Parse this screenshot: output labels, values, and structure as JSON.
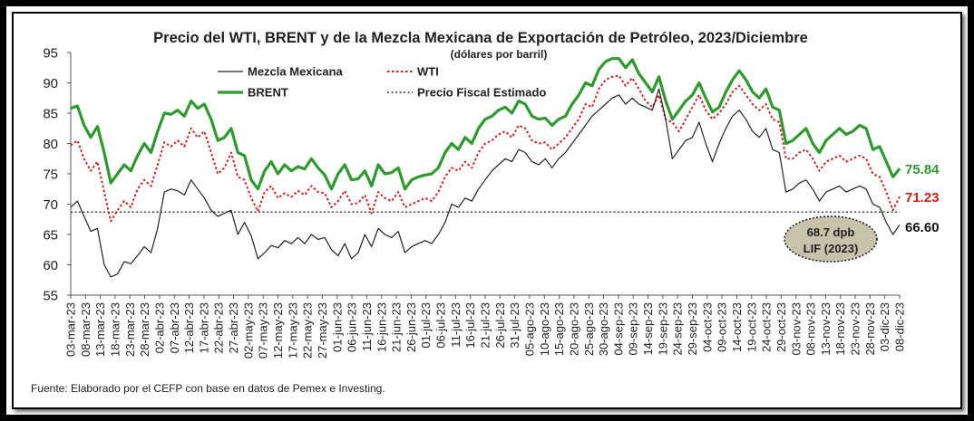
{
  "chart_data": {
    "type": "line",
    "title": "Precio del WTI, BRENT y de la Mezcla Mexicana de Exportación de Petróleo, 2023/Diciembre",
    "subtitle": "(dólares por barril)",
    "ylim": [
      55,
      95
    ],
    "yticks": [
      55,
      60,
      65,
      70,
      75,
      80,
      85,
      90,
      95
    ],
    "xtick_labels": [
      "03-mar-23",
      "08-mar-23",
      "13-mar-23",
      "18-mar-23",
      "23-mar-23",
      "28-mar-23",
      "02-abr-23",
      "07-abr-23",
      "12-abr-23",
      "17-abr-23",
      "22-abr-23",
      "27-abr-23",
      "02-may-23",
      "07-may-23",
      "12-may-23",
      "17-may-23",
      "22-may-23",
      "27-may-23",
      "01-jun-23",
      "06-jun-23",
      "11-jun-23",
      "16-jun-23",
      "21-jun-23",
      "26-jun-23",
      "01-jul-23",
      "06-jul-23",
      "11-jul-23",
      "16-jul-23",
      "21-jul-23",
      "26-jul-23",
      "31-jul-23",
      "05-ago-23",
      "10-ago-23",
      "15-ago-23",
      "20-ago-23",
      "25-ago-23",
      "30-ago-23",
      "04-sep-23",
      "09-sep-23",
      "14-sep-23",
      "19-sep-23",
      "24-sep-23",
      "29-sep-23",
      "04-oct-23",
      "09-oct-23",
      "14-oct-23",
      "19-oct-23",
      "24-oct-23",
      "29-oct-23",
      "03-nov-23",
      "08-nov-23",
      "13-nov-23",
      "18-nov-23",
      "23-nov-23",
      "28-nov-23",
      "03-dic-23",
      "08-dic-23"
    ],
    "legend": [
      "Mezcla Mexicana",
      "WTI",
      "BRENT",
      "Precio Fiscal Estimado"
    ],
    "series": [
      {
        "name": "BRENT",
        "color": "#2e9a2e",
        "end_label": "75.84",
        "values": [
          85.8,
          86.2,
          83,
          81,
          82.8,
          78.5,
          73.5,
          75,
          76.5,
          75.5,
          78,
          80,
          78.5,
          82,
          85,
          84.8,
          85.5,
          84.5,
          87,
          85.8,
          86.5,
          84,
          80.5,
          81,
          82.5,
          78.5,
          78,
          74,
          72.5,
          75.5,
          77,
          75,
          76.5,
          75.5,
          76.2,
          75.8,
          77.5,
          76,
          74.8,
          72.5,
          75,
          76.5,
          74,
          74.2,
          75.5,
          73,
          76.5,
          75,
          75.2,
          76,
          72.5,
          74,
          74.5,
          74.8,
          75,
          76,
          78.5,
          80,
          79,
          81,
          80,
          82.5,
          84,
          84.5,
          85.5,
          86,
          85,
          87,
          86.5,
          84.5,
          84,
          84.2,
          83,
          84,
          84.5,
          86.5,
          88,
          90,
          89.5,
          92.2,
          93.5,
          94,
          94,
          92.5,
          93.8,
          91.5,
          90,
          88.5,
          91,
          87,
          84,
          85.5,
          87,
          88,
          90,
          87.5,
          85.2,
          86,
          88.5,
          90.5,
          92,
          90.5,
          88.5,
          87.5,
          89,
          86,
          85.5,
          80,
          80.5,
          81.5,
          82.5,
          80,
          78.5,
          80.5,
          81.5,
          82.5,
          81.5,
          82,
          83,
          82.5,
          79,
          79.5,
          77,
          74.5,
          75.84
        ]
      },
      {
        "name": "WTI",
        "color": "#d62020",
        "end_label": "71.23",
        "values": [
          79.7,
          80.5,
          77.5,
          75.5,
          77,
          72,
          67.2,
          69,
          70.5,
          69.5,
          72.5,
          74,
          73,
          76.5,
          80.2,
          79.5,
          80.5,
          79.5,
          82.5,
          81,
          82,
          78.5,
          75,
          76,
          78.5,
          74.5,
          74,
          71,
          68.8,
          72,
          73,
          71,
          71.8,
          71.2,
          72.2,
          71.5,
          73,
          72,
          71.8,
          69.5,
          70.5,
          72.2,
          70,
          70.2,
          71.5,
          68.5,
          72,
          71,
          70.5,
          72,
          69.5,
          70,
          70.5,
          71,
          70.5,
          72,
          74.5,
          76,
          75.5,
          77,
          76,
          78.5,
          80,
          80.5,
          81.5,
          82,
          81,
          83,
          82.5,
          80.5,
          80,
          80.2,
          79,
          80,
          81,
          82.5,
          84,
          86.5,
          86,
          89,
          90.5,
          91,
          91.2,
          89.5,
          90.8,
          89,
          87,
          86,
          88,
          84,
          83.5,
          82,
          84,
          86,
          88,
          85.5,
          84,
          85,
          86.5,
          88.5,
          89.5,
          88,
          86.5,
          85.5,
          86.5,
          84,
          83.5,
          77.5,
          77.5,
          78.5,
          79,
          77.5,
          75.5,
          77,
          77.5,
          78,
          77,
          77.5,
          78,
          77.5,
          75,
          74.5,
          72,
          69,
          71.23
        ]
      },
      {
        "name": "Mezcla Mexicana",
        "color": "#222222",
        "end_label": "66.60",
        "values": [
          69.5,
          70.5,
          68,
          65.5,
          66,
          60,
          58,
          58.5,
          60.5,
          60.2,
          61.5,
          63,
          62,
          66,
          72,
          72.5,
          72.2,
          71.5,
          74,
          72.5,
          71,
          69,
          68,
          68.5,
          69,
          65,
          67,
          64.8,
          61,
          62,
          63.2,
          62.8,
          64,
          63.5,
          64.5,
          63.5,
          65,
          64.2,
          64.5,
          62.5,
          61.5,
          63.5,
          61,
          62,
          65,
          63,
          66,
          65,
          64.5,
          65.5,
          62,
          63,
          63.5,
          64,
          63.5,
          65,
          67,
          70,
          69.5,
          71,
          70.5,
          72.5,
          74,
          75.5,
          76.5,
          77.5,
          77,
          79,
          78.5,
          77,
          76.5,
          77.5,
          76,
          77.5,
          78.5,
          80,
          81.5,
          83,
          84.5,
          85.5,
          86.5,
          87.5,
          88,
          86.5,
          87.5,
          86.5,
          86,
          85.5,
          89,
          84,
          77.5,
          79,
          80.5,
          81,
          83.5,
          80,
          77,
          80,
          82.5,
          84.5,
          85.5,
          84,
          82,
          81,
          82.5,
          79,
          78.5,
          72,
          72.5,
          73.5,
          74,
          72.5,
          70.5,
          72,
          72.5,
          73,
          72,
          72.5,
          73,
          72.5,
          70,
          69.5,
          67,
          65,
          66.6
        ]
      }
    ],
    "reference_line": {
      "name": "Precio Fiscal Estimado",
      "value": 68.7,
      "label_line1": "68.7 dpb",
      "label_line2": "LIF (2023)"
    },
    "source": "Fuente: Elaborado por el CEFP con base en datos de Pemex e Investing."
  }
}
